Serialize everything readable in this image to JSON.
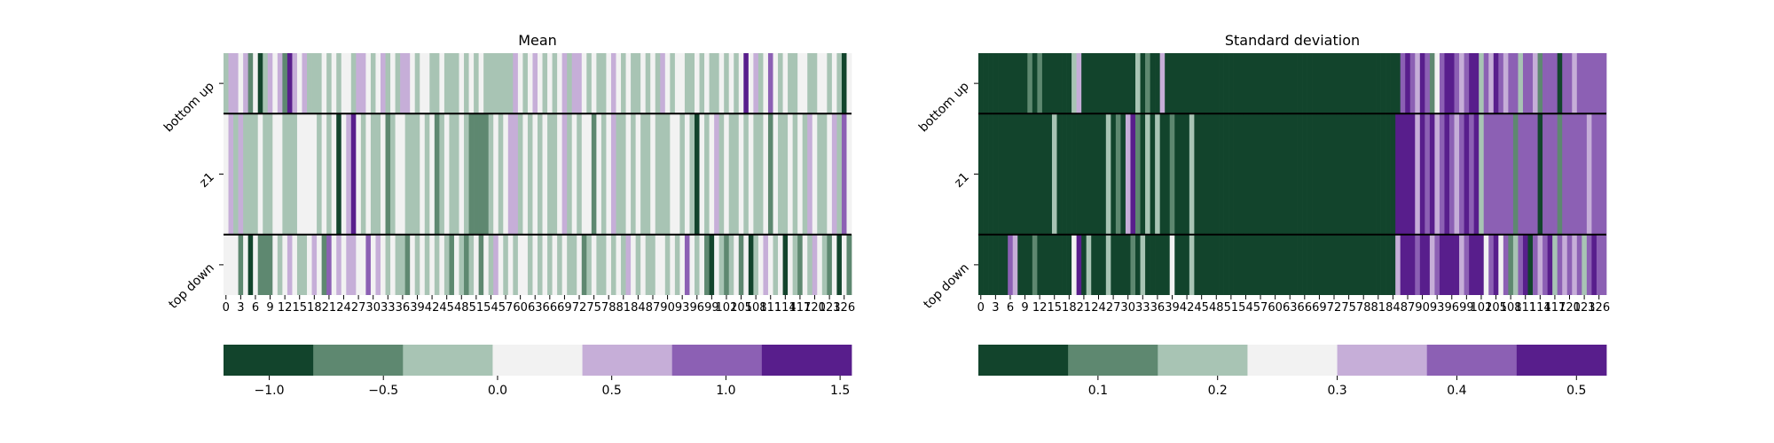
{
  "chart_data": [
    {
      "type": "heatmap",
      "title": "Mean",
      "xlabel": "",
      "ylabel": "",
      "x_tick_labels": [
        "0",
        "3",
        "6",
        "9",
        "12",
        "15",
        "18",
        "21",
        "24",
        "27",
        "30",
        "33",
        "36",
        "39",
        "42",
        "45",
        "48",
        "51",
        "54",
        "57",
        "60",
        "63",
        "66",
        "69",
        "72",
        "75",
        "78",
        "81",
        "84",
        "87",
        "90",
        "93",
        "96",
        "99",
        "102",
        "105",
        "108",
        "111",
        "114",
        "117",
        "120",
        "123",
        "126"
      ],
      "row_labels": [
        "bottom up",
        "z1",
        "top down"
      ],
      "row_weights": [
        1,
        2,
        1
      ],
      "n_columns": 128,
      "colormap": "PRGn_r",
      "color_levels": [
        "#12442c",
        "#5e8870",
        "#a8c4b4",
        "#f2f2f2",
        "#c6aed8",
        "#8c60b4",
        "#581e8c"
      ],
      "value_range": [
        -1.2,
        1.55
      ],
      "colorbar_ticks": [
        {
          "value": -1.0,
          "label": "−1.0"
        },
        {
          "value": -0.5,
          "label": "−0.5"
        },
        {
          "value": 0.0,
          "label": "0.0"
        },
        {
          "value": 0.5,
          "label": "0.5"
        },
        {
          "value": 1.0,
          "label": "1.0"
        },
        {
          "value": 1.5,
          "label": "1.5"
        }
      ],
      "levels": [
        [
          2,
          4,
          4,
          3,
          4,
          1,
          3,
          0,
          2,
          4,
          3,
          4,
          1,
          6,
          4,
          3,
          4,
          2,
          2,
          2,
          3,
          2,
          3,
          2,
          3,
          3,
          2,
          4,
          4,
          3,
          2,
          3,
          4,
          2,
          3,
          2,
          4,
          4,
          3,
          2,
          3,
          3,
          2,
          2,
          3,
          2,
          2,
          2,
          3,
          2,
          3,
          2,
          3,
          2,
          2,
          2,
          2,
          2,
          2,
          4,
          3,
          2,
          3,
          4,
          3,
          2,
          3,
          2,
          3,
          4,
          2,
          4,
          4,
          3,
          2,
          3,
          2,
          2,
          3,
          4,
          3,
          2,
          3,
          2,
          2,
          3,
          2,
          3,
          2,
          4,
          3,
          2,
          3,
          3,
          2,
          2,
          3,
          2,
          3,
          2,
          2,
          3,
          2,
          3,
          2,
          3,
          6,
          3,
          4,
          2,
          3,
          5,
          3,
          2,
          3,
          2,
          2,
          3,
          3,
          2,
          2,
          3,
          3,
          2,
          3,
          2,
          0,
          3
        ],
        [
          3,
          4,
          2,
          4,
          2,
          2,
          2,
          3,
          2,
          2,
          3,
          3,
          2,
          2,
          2,
          3,
          3,
          3,
          3,
          2,
          3,
          2,
          3,
          0,
          3,
          4,
          6,
          3,
          2,
          3,
          2,
          2,
          3,
          1,
          2,
          3,
          3,
          2,
          2,
          2,
          3,
          2,
          3,
          1,
          2,
          3,
          2,
          2,
          3,
          2,
          1,
          1,
          1,
          1,
          2,
          3,
          2,
          3,
          4,
          4,
          2,
          3,
          2,
          3,
          2,
          3,
          2,
          2,
          3,
          4,
          2,
          3,
          2,
          3,
          3,
          1,
          3,
          2,
          3,
          4,
          2,
          2,
          3,
          2,
          3,
          2,
          2,
          3,
          2,
          2,
          2,
          3,
          3,
          2,
          3,
          2,
          0,
          3,
          2,
          3,
          4,
          2,
          3,
          2,
          2,
          3,
          2,
          3,
          2,
          2,
          3,
          1,
          3,
          2,
          2,
          3,
          2,
          3,
          2,
          4,
          3,
          2,
          2,
          3,
          4,
          2,
          5,
          3
        ],
        [
          3,
          3,
          3,
          1,
          3,
          0,
          3,
          1,
          1,
          1,
          3,
          2,
          3,
          4,
          3,
          2,
          2,
          3,
          4,
          3,
          1,
          5,
          3,
          4,
          3,
          4,
          4,
          3,
          3,
          5,
          3,
          4,
          3,
          2,
          3,
          2,
          2,
          1,
          3,
          2,
          3,
          2,
          3,
          2,
          3,
          2,
          1,
          3,
          2,
          1,
          2,
          3,
          1,
          3,
          2,
          4,
          3,
          2,
          3,
          2,
          3,
          3,
          2,
          3,
          2,
          3,
          2,
          3,
          2,
          3,
          2,
          2,
          3,
          1,
          2,
          3,
          2,
          2,
          3,
          2,
          3,
          2,
          4,
          3,
          2,
          3,
          2,
          2,
          3,
          3,
          2,
          3,
          2,
          3,
          5,
          3,
          2,
          3,
          1,
          0,
          3,
          2,
          1,
          2,
          3,
          1,
          3,
          0,
          2,
          3,
          4,
          3,
          2,
          3,
          0,
          3,
          2,
          1,
          3,
          2,
          4,
          3,
          2,
          1,
          3,
          0,
          3,
          1
        ]
      ]
    },
    {
      "type": "heatmap",
      "title": "Standard deviation",
      "xlabel": "",
      "ylabel": "",
      "x_tick_labels": [
        "0",
        "3",
        "6",
        "9",
        "12",
        "15",
        "18",
        "21",
        "24",
        "27",
        "30",
        "33",
        "36",
        "39",
        "42",
        "45",
        "48",
        "51",
        "54",
        "57",
        "60",
        "63",
        "66",
        "69",
        "72",
        "75",
        "78",
        "81",
        "84",
        "87",
        "90",
        "93",
        "96",
        "99",
        "102",
        "105",
        "108",
        "111",
        "114",
        "117",
        "120",
        "123",
        "126"
      ],
      "row_labels": [
        "bottom up",
        "z1",
        "top down"
      ],
      "row_weights": [
        1,
        2,
        1
      ],
      "n_columns": 128,
      "colormap": "PRGn_r",
      "color_levels": [
        "#12442c",
        "#5e8870",
        "#a8c4b4",
        "#f2f2f2",
        "#c6aed8",
        "#8c60b4",
        "#581e8c"
      ],
      "value_range": [
        0.0,
        0.525
      ],
      "colorbar_ticks": [
        {
          "value": 0.1,
          "label": "0.1"
        },
        {
          "value": 0.2,
          "label": "0.2"
        },
        {
          "value": 0.3,
          "label": "0.3"
        },
        {
          "value": 0.4,
          "label": "0.4"
        },
        {
          "value": 0.5,
          "label": "0.5"
        }
      ],
      "levels": [
        [
          0,
          0,
          0,
          0,
          0,
          0,
          0,
          0,
          0,
          0,
          1,
          0,
          1,
          0,
          0,
          0,
          0,
          0,
          0,
          2,
          4,
          0,
          0,
          0,
          0,
          0,
          0,
          0,
          0,
          0,
          0,
          0,
          2,
          0,
          1,
          0,
          0,
          4,
          0,
          0,
          0,
          0,
          0,
          0,
          0,
          0,
          0,
          0,
          0,
          0,
          0,
          0,
          0,
          0,
          0,
          0,
          0,
          0,
          0,
          0,
          0,
          0,
          0,
          0,
          0,
          0,
          0,
          0,
          0,
          0,
          0,
          0,
          0,
          0,
          0,
          0,
          0,
          0,
          0,
          0,
          0,
          0,
          0,
          0,
          0,
          0,
          5,
          6,
          5,
          4,
          6,
          5,
          1,
          3,
          5,
          6,
          6,
          5,
          4,
          5,
          6,
          6,
          2,
          5,
          4,
          6,
          5,
          4,
          5,
          5,
          2,
          5,
          5,
          4,
          1,
          5,
          5,
          5,
          0,
          5,
          5,
          4,
          5,
          5,
          5,
          5,
          5,
          5
        ],
        [
          0,
          0,
          0,
          0,
          0,
          0,
          0,
          0,
          0,
          0,
          0,
          0,
          0,
          0,
          0,
          2,
          0,
          0,
          0,
          0,
          0,
          0,
          0,
          0,
          0,
          0,
          2,
          0,
          1,
          0,
          4,
          6,
          1,
          0,
          2,
          0,
          2,
          0,
          0,
          1,
          0,
          0,
          0,
          2,
          0,
          0,
          0,
          0,
          0,
          0,
          0,
          0,
          0,
          0,
          0,
          0,
          0,
          0,
          0,
          0,
          0,
          0,
          0,
          0,
          0,
          0,
          0,
          0,
          0,
          0,
          0,
          0,
          0,
          0,
          0,
          0,
          0,
          0,
          0,
          0,
          0,
          0,
          0,
          0,
          0,
          6,
          6,
          6,
          6,
          4,
          6,
          5,
          6,
          4,
          5,
          6,
          5,
          4,
          5,
          6,
          5,
          6,
          2,
          5,
          5,
          5,
          5,
          5,
          5,
          1,
          5,
          5,
          5,
          5,
          0,
          5,
          5,
          5,
          1,
          5,
          5,
          5,
          5,
          5,
          4,
          5,
          5,
          5
        ],
        [
          0,
          0,
          0,
          0,
          0,
          0,
          5,
          4,
          0,
          0,
          0,
          1,
          0,
          0,
          0,
          0,
          0,
          0,
          0,
          3,
          6,
          0,
          2,
          0,
          0,
          0,
          2,
          0,
          0,
          0,
          0,
          1,
          0,
          2,
          0,
          0,
          0,
          0,
          0,
          3,
          0,
          0,
          0,
          2,
          0,
          0,
          0,
          0,
          0,
          0,
          0,
          0,
          0,
          0,
          0,
          0,
          0,
          0,
          0,
          0,
          0,
          0,
          0,
          0,
          0,
          0,
          0,
          0,
          0,
          0,
          0,
          0,
          0,
          0,
          0,
          0,
          0,
          0,
          0,
          0,
          0,
          0,
          0,
          0,
          0,
          4,
          6,
          6,
          6,
          5,
          6,
          6,
          4,
          5,
          6,
          6,
          6,
          6,
          4,
          5,
          6,
          6,
          6,
          3,
          5,
          6,
          3,
          5,
          1,
          2,
          5,
          6,
          0,
          5,
          4,
          5,
          6,
          2,
          5,
          4,
          5,
          4,
          5,
          2,
          5,
          6,
          5,
          5
        ]
      ]
    }
  ]
}
